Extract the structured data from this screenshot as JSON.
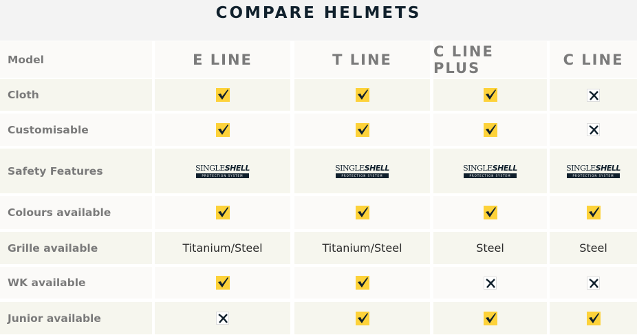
{
  "title": "COMPARE HELMETS",
  "header_label": "Model",
  "models": [
    "E LINE",
    "T LINE",
    "C LINE PLUS",
    "C LINE"
  ],
  "logo": {
    "main": "SINGLE",
    "bold": "SHELL",
    "sub": "PROTECTION SYSTEM"
  },
  "colors": {
    "check_bg": "#fdd23a",
    "mark": "#10202c"
  },
  "rows": [
    {
      "label": "Cloth",
      "values": [
        "check",
        "check",
        "check",
        "cross"
      ]
    },
    {
      "label": "Customisable",
      "values": [
        "check",
        "check",
        "check",
        "cross"
      ]
    },
    {
      "label": "Safety Features",
      "values": [
        "logo",
        "logo",
        "logo",
        "logo"
      ]
    },
    {
      "label": "Colours available",
      "values": [
        "check",
        "check",
        "check",
        "check"
      ]
    },
    {
      "label": "Grille available",
      "values": [
        "Titanium/Steel",
        "Titanium/Steel",
        "Steel",
        "Steel"
      ]
    },
    {
      "label": "WK available",
      "values": [
        "check",
        "check",
        "cross",
        "cross"
      ]
    },
    {
      "label": "Junior available",
      "values": [
        "cross",
        "check",
        "check",
        "check"
      ]
    }
  ]
}
